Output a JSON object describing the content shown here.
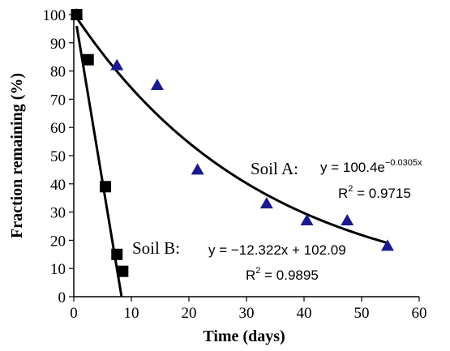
{
  "chart_data": {
    "type": "scatter",
    "xlabel": "Time (days)",
    "ylabel": "Fraction  remaining (%)",
    "xlim": [
      0,
      60
    ],
    "ylim": [
      0,
      100
    ],
    "x_ticks": [
      "0",
      "10",
      "20",
      "30",
      "40",
      "50",
      "60"
    ],
    "y_ticks": [
      "0",
      "10",
      "20",
      "30",
      "40",
      "50",
      "60",
      "70",
      "80",
      "90",
      "100"
    ],
    "grid": false,
    "series": [
      {
        "name": "Soil A",
        "marker": "triangle",
        "color": "#1a1a8c",
        "points": [
          {
            "x": 0.5,
            "y": 100
          },
          {
            "x": 7.5,
            "y": 82
          },
          {
            "x": 14.5,
            "y": 75
          },
          {
            "x": 21.5,
            "y": 45
          },
          {
            "x": 33.5,
            "y": 33
          },
          {
            "x": 40.5,
            "y": 27
          },
          {
            "x": 47.5,
            "y": 27
          },
          {
            "x": 54.5,
            "y": 18
          }
        ],
        "fit": {
          "type": "exponential",
          "a": 100.4,
          "b": -0.0305,
          "x_range": [
            0.5,
            54.5
          ]
        },
        "label": "Soil A:",
        "equation_main": "y = 100.4e",
        "equation_exp": "−0.0305x",
        "r2_prefix": "R",
        "r2_sup": "2",
        "r2_value": " = 0.9715"
      },
      {
        "name": "Soil B",
        "marker": "square",
        "color": "#000000",
        "points": [
          {
            "x": 0.5,
            "y": 100
          },
          {
            "x": 2.5,
            "y": 84
          },
          {
            "x": 5.5,
            "y": 39
          },
          {
            "x": 7.5,
            "y": 15
          },
          {
            "x": 8.5,
            "y": 9
          }
        ],
        "fit": {
          "type": "linear",
          "slope": -12.322,
          "intercept": 102.09,
          "x_range": [
            0.5,
            8.3
          ]
        },
        "label": "Soil B:",
        "equation_main": "y = −12.322x + 102.09",
        "r2_prefix": "R",
        "r2_sup": "2",
        "r2_value": " = 0.9895"
      }
    ]
  }
}
